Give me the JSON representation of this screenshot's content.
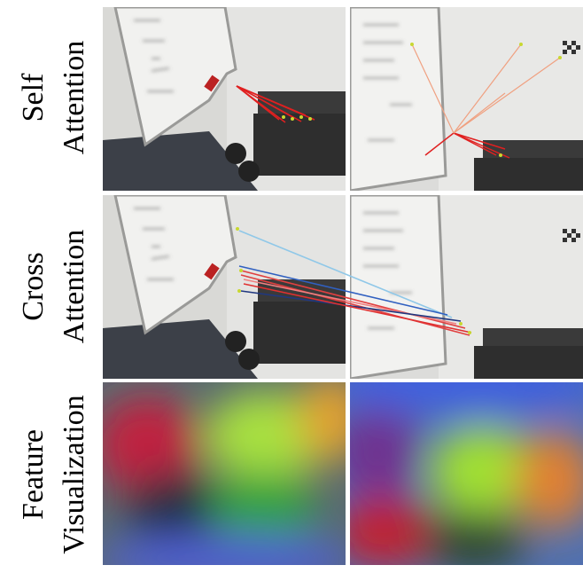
{
  "rows": [
    {
      "label": [
        "Self",
        "Attention"
      ]
    },
    {
      "label": [
        "Cross",
        "Attention"
      ]
    },
    {
      "label": [
        "Feature",
        "Visualization"
      ]
    }
  ]
}
